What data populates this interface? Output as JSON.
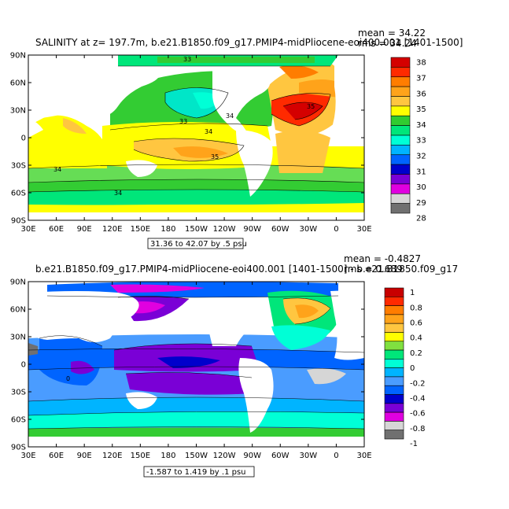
{
  "panels": [
    {
      "title": "SALINITY at z= 197.7m, b.e21.B1850.f09_g17.PMIP4-midPliocene-eoi400.001 [1401-1500]",
      "stat_line1": "mean = 34.22",
      "stat_line2": "rms = 34.24",
      "range_label": "31.36 to 42.07 by .5 psu",
      "colorbar_labels": [
        "38",
        "37",
        "36",
        "35",
        "34",
        "33",
        "32",
        "31",
        "30",
        "29",
        "28"
      ],
      "colorbar_colors": [
        "#d40000",
        "#ff2a00",
        "#ff7d00",
        "#ffa31a",
        "#ffc640",
        "#ffff00",
        "#30cc30",
        "#00e67a",
        "#00ffd6",
        "#00b4ff",
        "#0064ff",
        "#0000cc",
        "#7a00d6",
        "#e000e0",
        "#d6d6d6",
        "#707070"
      ],
      "contour_labels": [
        "33",
        "33",
        "34",
        "34",
        "35",
        "34",
        "34",
        "35"
      ],
      "lat_ticks": [
        "90N",
        "60N",
        "30N",
        "0",
        "30S",
        "60S",
        "90S"
      ],
      "lon_ticks": [
        "30E",
        "60E",
        "90E",
        "120E",
        "150E",
        "180",
        "150W",
        "120W",
        "90W",
        "60W",
        "30W",
        "0",
        "30E"
      ]
    },
    {
      "title": "b.e21.B1850.f09_g17.PMIP4-midPliocene-eoi400.001 [1401-1500] - b.e21.B1850.f09_g17",
      "stat_line1": "mean = -0.4827",
      "stat_line2": "rms = 0.689",
      "range_label": "-1.587 to 1.419 by .1 psu",
      "colorbar_labels": [
        "1",
        "0.8",
        "0.6",
        "0.4",
        "0.2",
        "0",
        "-0.2",
        "-0.4",
        "-0.6",
        "-0.8",
        "-1"
      ],
      "colorbar_colors": [
        "#c80000",
        "#ff2a00",
        "#ff7d00",
        "#ffa31a",
        "#ffc640",
        "#ffff00",
        "#80e040",
        "#00e67a",
        "#00ffd6",
        "#00b4ff",
        "#4a9cff",
        "#0064ff",
        "#0000cc",
        "#7a00d6",
        "#e000e0",
        "#d6d6d6",
        "#707070"
      ],
      "contour_labels": [
        "0"
      ],
      "lat_ticks": [
        "90N",
        "60N",
        "30N",
        "0",
        "30S",
        "60S",
        "90S"
      ],
      "lon_ticks": [
        "30E",
        "60E",
        "90E",
        "120E",
        "150E",
        "180",
        "150W",
        "120W",
        "90W",
        "60W",
        "30W",
        "0",
        "30E"
      ]
    }
  ]
}
